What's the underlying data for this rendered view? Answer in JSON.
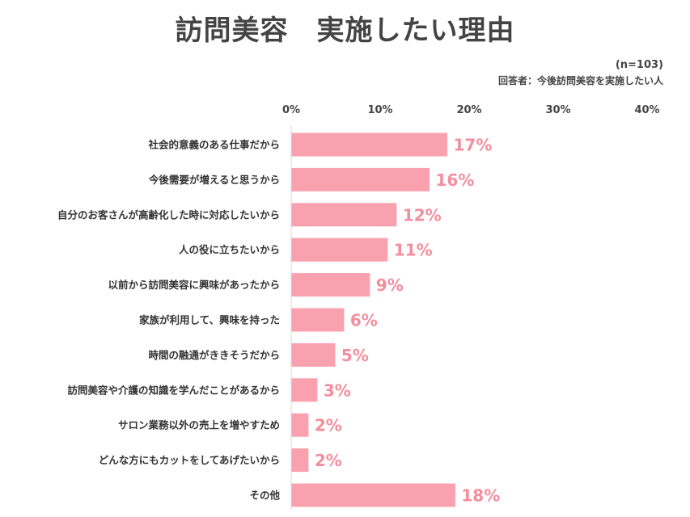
{
  "title": "訪問美容　実施したい理由",
  "sample_size": "(n=103)",
  "respondents": "回答者：今後訪問美容を実施したい人",
  "colors": {
    "bar": "#F9A1AE",
    "value_text": "#F48E9D",
    "axis": "#D8D8D8"
  },
  "chart_data": {
    "type": "bar",
    "orientation": "horizontal",
    "title": "訪問美容　実施したい理由",
    "xlim": [
      0,
      40
    ],
    "ticks": [
      0,
      10,
      20,
      30,
      40
    ],
    "tick_labels": [
      "0%",
      "10%",
      "20%",
      "30%",
      "40%"
    ],
    "tick_position": "top",
    "grid": false,
    "categories": [
      "社会的意義のある仕事だから",
      "今後需要が増えると思うから",
      "自分のお客さんが高齢化した時に対応したいから",
      "人の役に立ちたいから",
      "以前から訪問美容に興味があったから",
      "家族が利用して、興味を持った",
      "時間の融通がききそうだから",
      "訪問美容や介護の知識を学んだことがあるから",
      "サロン業務以外の売上を増やすため",
      "どんな方にもカットをしてあげたいから",
      "その他"
    ],
    "values": [
      17.5,
      15.5,
      11.8,
      10.8,
      8.8,
      5.9,
      4.9,
      2.9,
      1.9,
      1.9,
      18.4
    ],
    "value_labels": [
      "17%",
      "16%",
      "12%",
      "11%",
      "9%",
      "6%",
      "5%",
      "3%",
      "2%",
      "2%",
      "18%"
    ]
  }
}
